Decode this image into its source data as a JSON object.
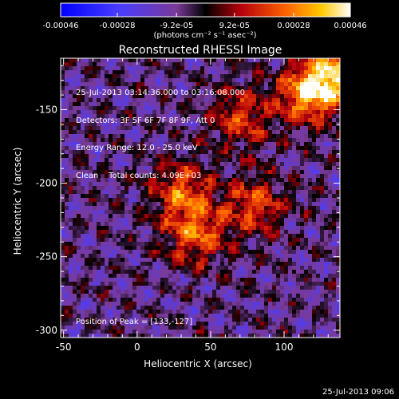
{
  "chart_data": {
    "type": "heatmap",
    "title": "Reconstructed RHESSI Image",
    "xlabel": "Heliocentric X (arcsec)",
    "ylabel": "Heliocentric Y (arcsec)",
    "xlim": [
      -52,
      138
    ],
    "ylim": [
      -305,
      -115
    ],
    "x_ticks": [
      "-50",
      "0",
      "50",
      "100"
    ],
    "x_tick_values": [
      -50,
      0,
      50,
      100
    ],
    "y_ticks": [
      "-150",
      "-200",
      "-250",
      "-300"
    ],
    "y_tick_values": [
      -150,
      -200,
      -250,
      -300
    ],
    "colorbar": {
      "min": -0.00046,
      "max": 0.00046,
      "tick_labels": [
        "-0.00046",
        "-0.00028",
        "-9.2e-05",
        "9.2e-05",
        "0.00028",
        "0.00046"
      ],
      "tick_values": [
        -0.00046,
        -0.00028,
        -9.2e-05,
        9.2e-05,
        0.00028,
        0.00046
      ],
      "unit_label": "(photons cm⁻² s⁻¹ asec⁻²)"
    },
    "annotations": {
      "time_range": "25-Jul-2013 03:14:36.000 to 03:16:08.000",
      "detectors": "Detectors: 3F 5F 6F 7F 8F 9F, Att 0",
      "energy_range": "Energy Range: 12.0 - 25.0 keV",
      "algorithm": "Clean",
      "total_counts": "Total counts: 4.09E+03",
      "peak_position": "Position of Peak = [133,-127]"
    },
    "bright_sources": [
      {
        "x": 133,
        "y": -127,
        "value": 0.00046
      },
      {
        "x": 115,
        "y": -140,
        "value": 0.00038
      },
      {
        "x": 40,
        "y": -235,
        "value": 0.00034
      },
      {
        "x": 30,
        "y": -205,
        "value": 0.00032
      },
      {
        "x": 80,
        "y": -215,
        "value": 0.0003
      },
      {
        "x": 70,
        "y": -155,
        "value": 0.00028
      }
    ]
  },
  "footer_date": "25-Jul-2013 09:06"
}
